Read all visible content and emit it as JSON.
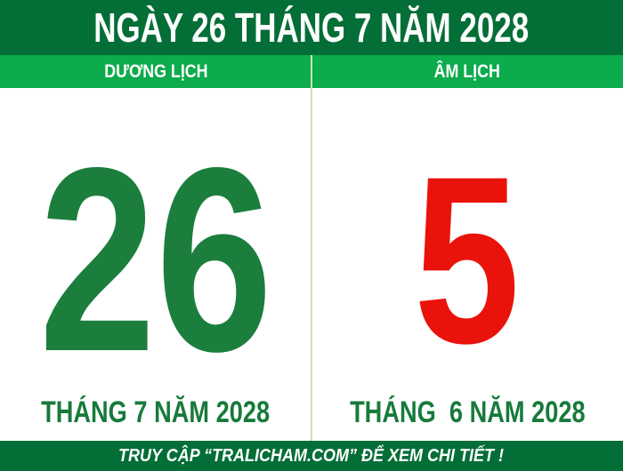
{
  "page": {
    "title": "NGÀY 26 THÁNG 7 NĂM 2028",
    "footer": "TRUY CẬP “TRALICHAM.COM” ĐỂ XEM CHI TIẾT !"
  },
  "columns": {
    "solar": {
      "header": "DƯƠNG LỊCH",
      "day": "26",
      "month_year": "THÁNG 7 NĂM 2028"
    },
    "lunar": {
      "header": "ÂM LỊCH",
      "day": "5",
      "month_year": "THÁNG  6 NĂM 2028"
    }
  },
  "colors": {
    "header_footer_green": "#046e37",
    "band_green": "#0cab4c",
    "solar_day_green": "#1b7e3d",
    "lunar_day_red": "#e9130b",
    "month_label_green": "#177a3b",
    "divider_pale_green": "#cbe3a6",
    "text_white": "#ffffff",
    "background_white": "#ffffff"
  }
}
